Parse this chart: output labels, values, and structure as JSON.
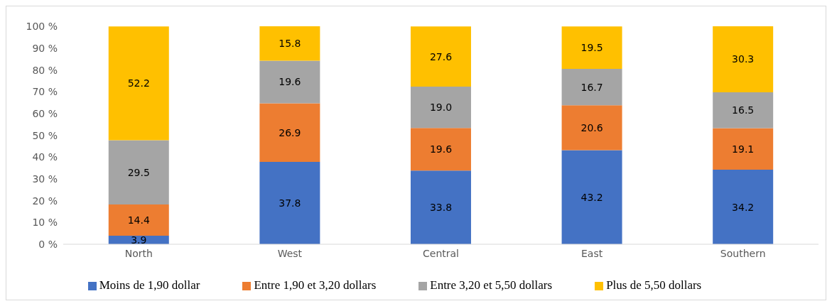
{
  "chart_data": {
    "type": "bar",
    "stacked": true,
    "categories": [
      "North",
      "West",
      "Central",
      "East",
      "Southern"
    ],
    "series": [
      {
        "name": "Moins de 1,90 dollar",
        "color": "#4472c4",
        "values": [
          3.9,
          37.8,
          33.8,
          43.2,
          34.2
        ],
        "value_labels": [
          "3.9",
          "37.8",
          "33.8",
          "43.2",
          "34.2"
        ]
      },
      {
        "name": "Entre 1,90  et 3,20 dollars",
        "color": "#ed7d31",
        "values": [
          14.4,
          26.9,
          19.6,
          20.6,
          19.1
        ],
        "value_labels": [
          "14.4",
          "26.9",
          "19.6",
          "20.6",
          "19.1"
        ]
      },
      {
        "name": "Entre 3,20  et 5,50 dollars",
        "color": "#a5a5a5",
        "values": [
          29.5,
          19.6,
          19.0,
          16.7,
          16.5
        ],
        "value_labels": [
          "29.5",
          "19.6",
          "19.0",
          "16.7",
          "16.5"
        ]
      },
      {
        "name": "Plus de 5,50 dollars",
        "color": "#ffc000",
        "values": [
          52.2,
          15.8,
          27.6,
          19.5,
          30.3
        ],
        "value_labels": [
          "52.2",
          "15.8",
          "27.6",
          "19.5",
          "30.3"
        ]
      }
    ],
    "ylim": [
      0,
      100.1
    ],
    "yticks": [
      {
        "value": 0,
        "label": "0 %"
      },
      {
        "value": 10,
        "label": "10 %"
      },
      {
        "value": 20,
        "label": "20 %"
      },
      {
        "value": 30,
        "label": "30 %"
      },
      {
        "value": 40,
        "label": "40 %"
      },
      {
        "value": 50,
        "label": "50 %"
      },
      {
        "value": 60,
        "label": "60 %"
      },
      {
        "value": 70,
        "label": "70 %"
      },
      {
        "value": 80,
        "label": "80 %"
      },
      {
        "value": 90,
        "label": "90 %"
      },
      {
        "value": 100,
        "label": "100 %"
      }
    ],
    "grid": false,
    "legend": "bottom"
  }
}
